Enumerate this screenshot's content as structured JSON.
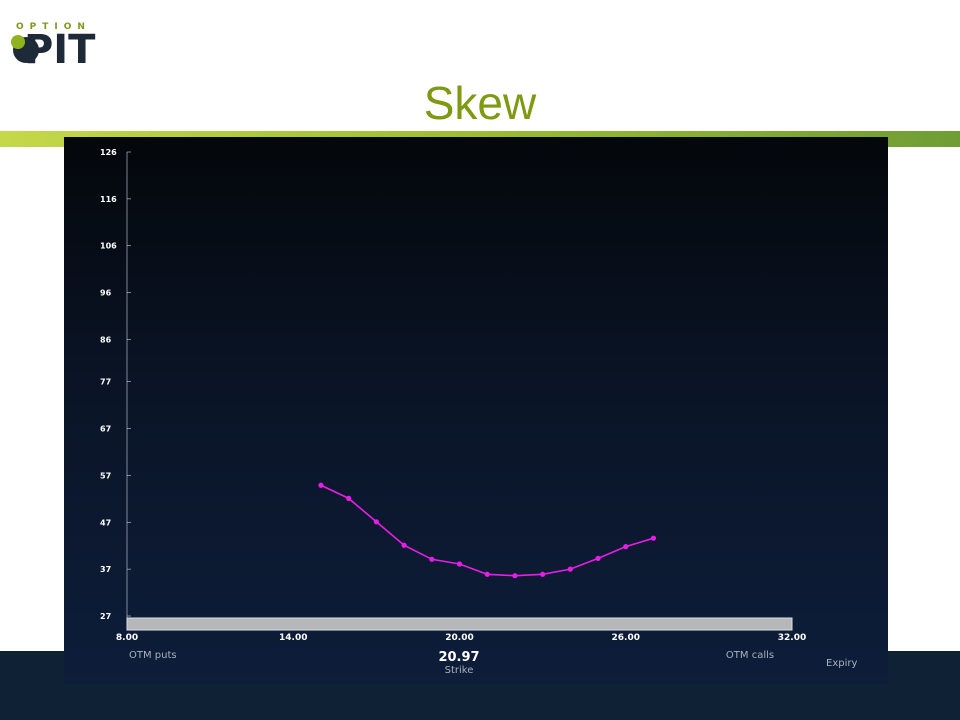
{
  "logo": {
    "top": "OPTION",
    "bottom": "PIT"
  },
  "page_title": "Skew",
  "colors": {
    "title": "#7d9a12",
    "accent_bar": "#9cbc32",
    "footer": "#0e2135",
    "chart_bg": "#0a1426",
    "series": "#e81ee8"
  },
  "labels": {
    "otm_puts": "OTM puts",
    "otm_calls": "OTM calls",
    "strike_value": "20.97",
    "strike_label": "Strike",
    "expiry": "Expiry"
  },
  "chart_data": {
    "type": "line",
    "title": "Skew",
    "xlabel": "Strike",
    "ylabel": "",
    "xlim": [
      8,
      32
    ],
    "ylim": [
      27,
      126
    ],
    "x_ticks": [
      "8.00",
      "14.00",
      "20.00",
      "26.00",
      "32.00"
    ],
    "y_ticks": [
      "126",
      "116",
      "106",
      "96",
      "86",
      "77",
      "67",
      "57",
      "47",
      "37",
      "27"
    ],
    "series": [
      {
        "x": [
          15,
          16,
          17,
          18,
          19,
          20,
          21,
          22,
          23,
          24,
          25,
          26,
          27
        ],
        "y": [
          54.9,
          52.1,
          47.1,
          42.1,
          39.1,
          38.1,
          35.9,
          35.6,
          35.9,
          37.0,
          39.3,
          41.8,
          43.6
        ]
      }
    ]
  }
}
